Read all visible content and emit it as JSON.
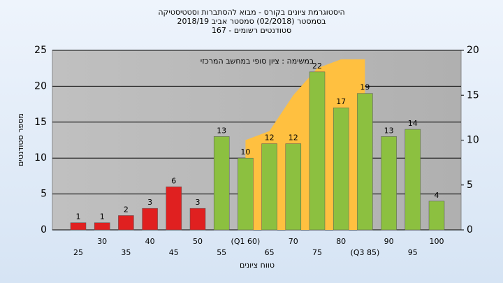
{
  "chart_data": {
    "type": "bar",
    "title": "היסטוגרמת ציונים בקורס - מבוא להסתברות וסטטיסטיקה",
    "subtitle": "בסמסטר  (02/2018)  סמסטר אביב 2018/19",
    "subtitle2": "סטודנטים רשומים - 167",
    "annotation": "במשימה : ציון סופי במחשב המרכזי",
    "ylabel": "מספר סטודנטים",
    "xlabel": "טווח ציונים",
    "categories": [
      "25",
      "30",
      "35",
      "40",
      "45",
      "50",
      "55",
      "(Q1 60)",
      "65",
      "70",
      "75",
      "80",
      "(Q3 85)",
      "90",
      "95",
      "100"
    ],
    "values": [
      1,
      1,
      2,
      3,
      6,
      3,
      13,
      10,
      12,
      12,
      22,
      17,
      19,
      13,
      14,
      4
    ],
    "colors": [
      "#e02020",
      "#e02020",
      "#e02020",
      "#e02020",
      "#e02020",
      "#e02020",
      "#8cc040",
      "#8cc040",
      "#8cc040",
      "#8cc040",
      "#8cc040",
      "#8cc040",
      "#8cc040",
      "#8cc040",
      "#8cc040",
      "#8cc040"
    ],
    "area": {
      "axis": "y2",
      "color": "#ffc040",
      "values": [
        null,
        null,
        null,
        null,
        null,
        null,
        null,
        10,
        11,
        15,
        18,
        19,
        19,
        null,
        null,
        null
      ]
    },
    "ylim": [
      0,
      25
    ],
    "yticks": [
      0,
      5,
      10,
      15,
      20,
      25
    ],
    "y2lim": [
      0,
      20
    ],
    "y2ticks": [
      0,
      5,
      10,
      15,
      20
    ],
    "grid": true
  }
}
